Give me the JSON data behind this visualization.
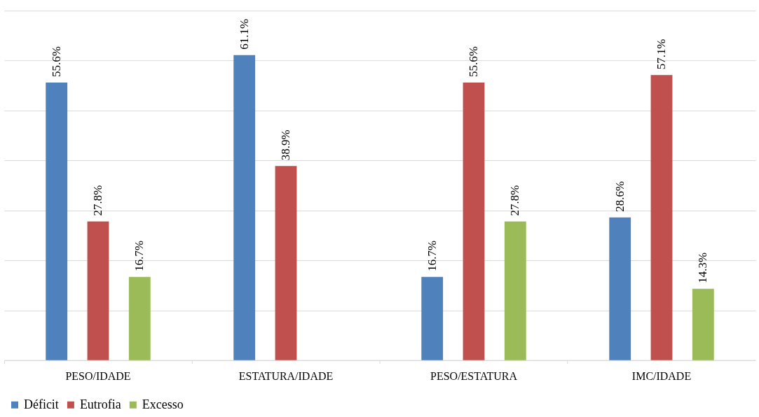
{
  "chart_data": {
    "type": "bar",
    "categories": [
      "PESO/IDADE",
      "ESTATURA/IDADE",
      "PESO/ESTATURA",
      "IMC/IDADE"
    ],
    "series": [
      {
        "name": "Déficit",
        "color": "#4f81bd",
        "values": [
          55.6,
          61.1,
          16.7,
          28.6
        ],
        "value_labels": [
          "55.6%",
          "61.1%",
          "16.7%",
          "28.6%"
        ]
      },
      {
        "name": "Eutrofia",
        "color": "#c0504d",
        "values": [
          27.8,
          38.9,
          55.6,
          57.1
        ],
        "value_labels": [
          "27.8%",
          "38.9%",
          "55.6%",
          "57.1%"
        ]
      },
      {
        "name": "Excesso",
        "color": "#9bbb59",
        "values": [
          16.7,
          null,
          27.8,
          14.3
        ],
        "value_labels": [
          "16.7%",
          null,
          "27.8%",
          "14.3%"
        ]
      }
    ],
    "ylim": [
      0,
      70
    ],
    "yticks": [
      {
        "value": 0,
        "label": null
      },
      {
        "value": 10,
        "label": null
      },
      {
        "value": 20,
        "label": null
      },
      {
        "value": 30,
        "label": null
      },
      {
        "value": 40,
        "label": null
      },
      {
        "value": 50,
        "label": null
      },
      {
        "value": 60,
        "label": null
      },
      {
        "value": 70,
        "label": null
      }
    ],
    "tick_labels": "x",
    "grid": "y",
    "legend": "bottom"
  }
}
